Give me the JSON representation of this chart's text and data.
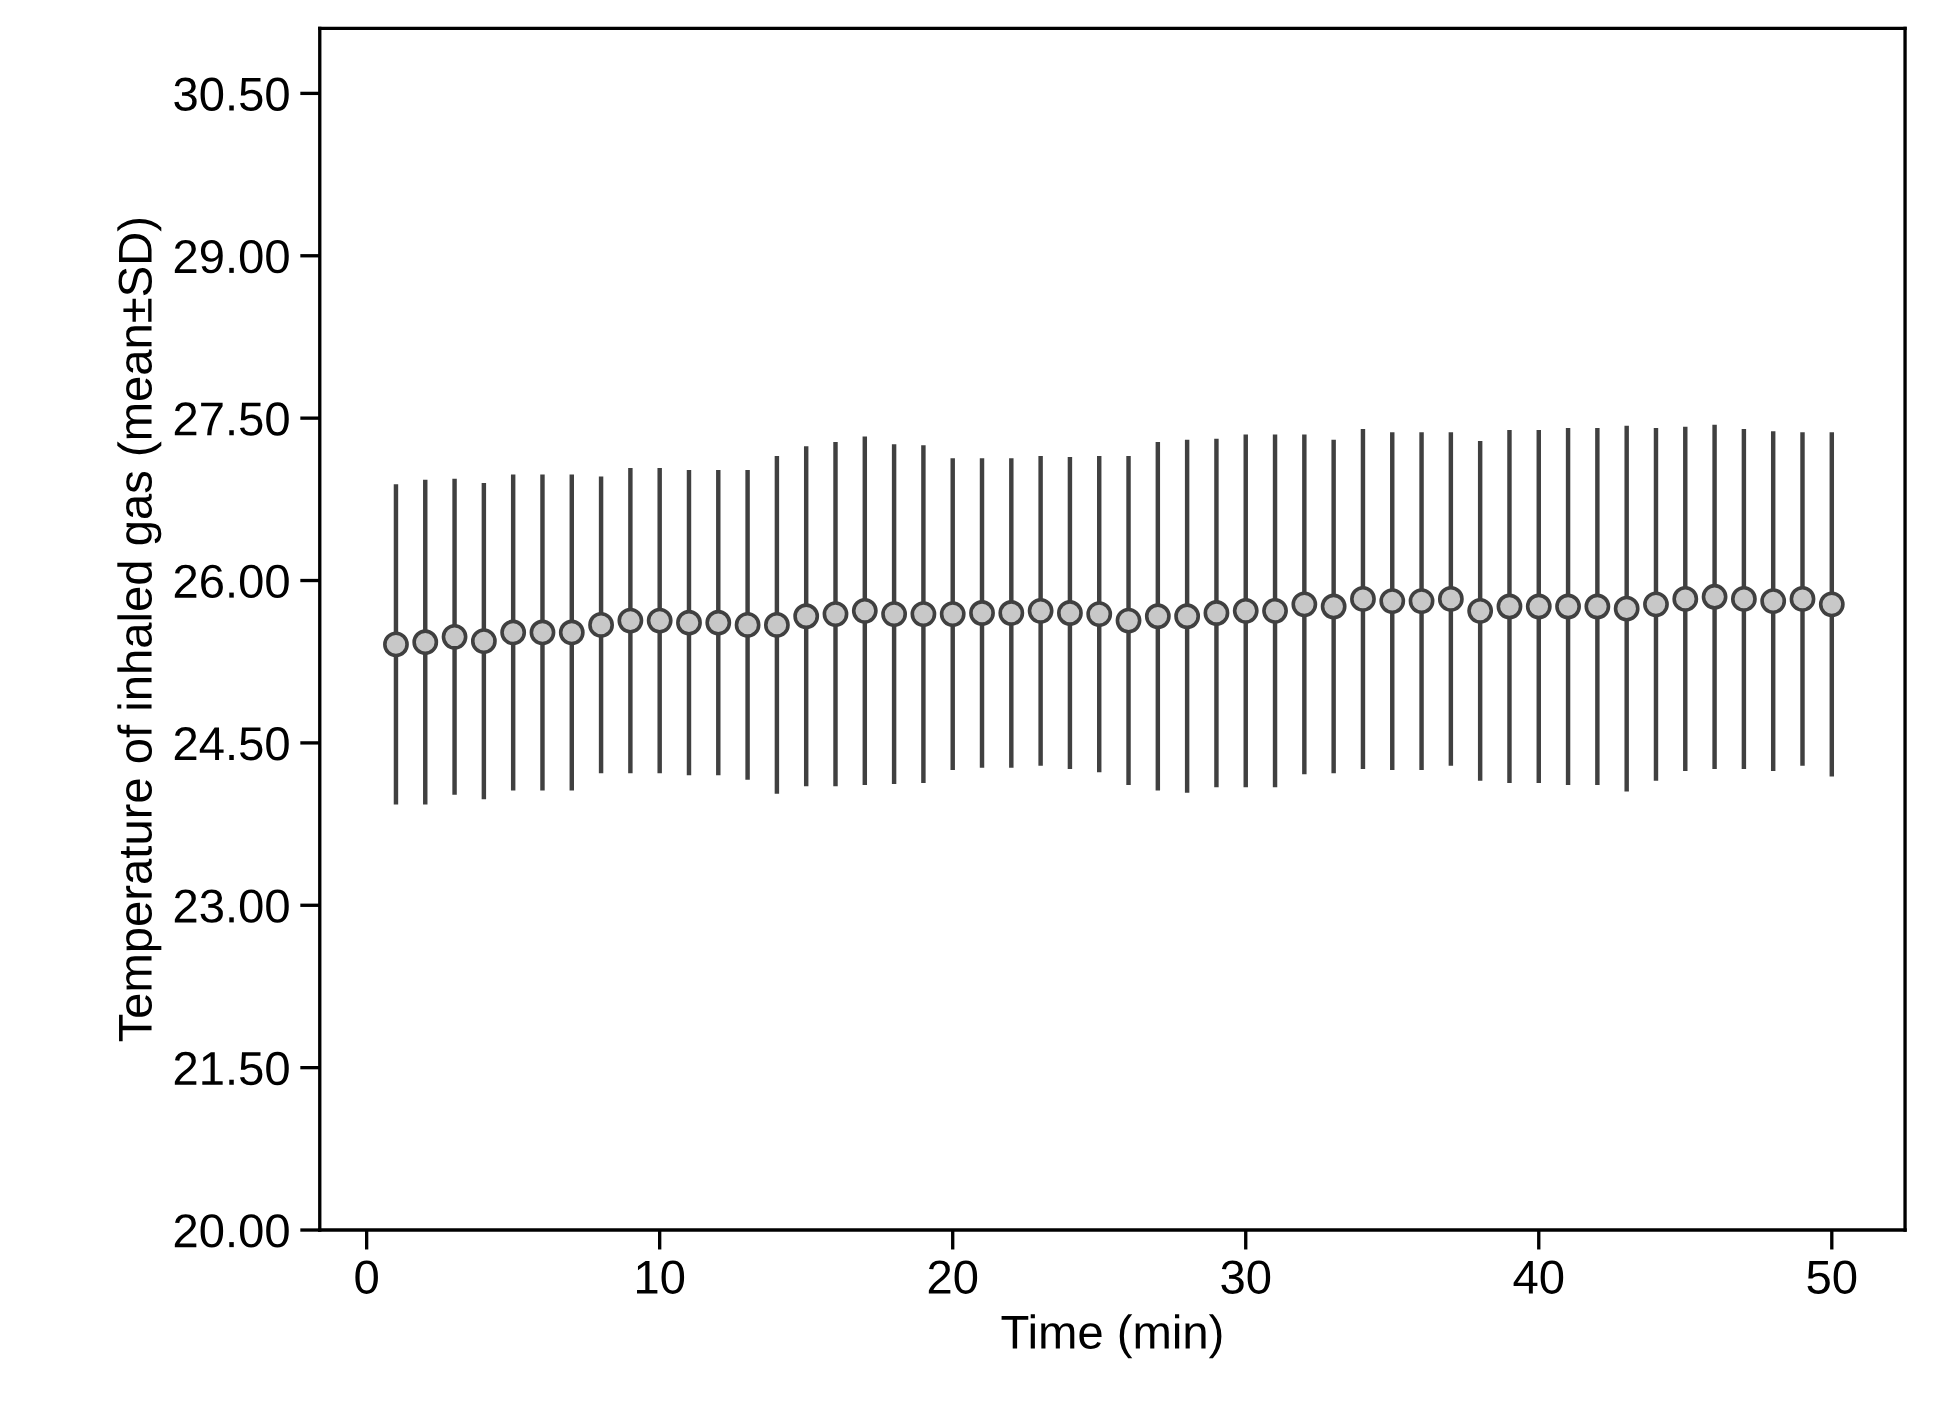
{
  "chart_data": {
    "type": "scatter",
    "xlabel": "Time (min)",
    "ylabel": "Temperature of inhaled gas (mean±SD)",
    "xlim": [
      -1.6,
      52.5
    ],
    "ylim": [
      20.0,
      31.1
    ],
    "xticks": [
      0,
      10,
      20,
      30,
      40,
      50
    ],
    "yticks": [
      {
        "value": 20,
        "label": "20.00"
      },
      {
        "value": 21.5,
        "label": "21.50"
      },
      {
        "value": 23,
        "label": "23.00"
      },
      {
        "value": 24.5,
        "label": "24.50"
      },
      {
        "value": 26,
        "label": "26.00"
      },
      {
        "value": 27.5,
        "label": "27.50"
      },
      {
        "value": 29,
        "label": "29.00"
      },
      {
        "value": 30.5,
        "label": "30.50"
      }
    ],
    "grid": false,
    "marker": "circle",
    "x": [
      1,
      2,
      3,
      4,
      5,
      6,
      7,
      8,
      9,
      10,
      11,
      12,
      13,
      14,
      15,
      16,
      17,
      18,
      19,
      20,
      21,
      22,
      23,
      24,
      25,
      26,
      27,
      28,
      29,
      30,
      31,
      32,
      33,
      34,
      35,
      36,
      37,
      38,
      39,
      40,
      41,
      42,
      43,
      44,
      45,
      46,
      47,
      48,
      49,
      50
    ],
    "series": [
      {
        "color": "#404040",
        "values": [
          25.41,
          25.43,
          25.48,
          25.44,
          25.52,
          25.52,
          25.52,
          25.59,
          25.63,
          25.63,
          25.61,
          25.61,
          25.59,
          25.59,
          25.67,
          25.69,
          25.72,
          25.69,
          25.69,
          25.69,
          25.7,
          25.7,
          25.72,
          25.7,
          25.69,
          25.63,
          25.67,
          25.67,
          25.7,
          25.72,
          25.72,
          25.78,
          25.76,
          25.83,
          25.81,
          25.81,
          25.83,
          25.72,
          25.76,
          25.76,
          25.76,
          25.76,
          25.74,
          25.78,
          25.83,
          25.85,
          25.83,
          25.81,
          25.83,
          25.78
        ],
        "errors": [
          1.48,
          1.5,
          1.46,
          1.46,
          1.46,
          1.46,
          1.46,
          1.37,
          1.41,
          1.41,
          1.41,
          1.41,
          1.43,
          1.56,
          1.57,
          1.59,
          1.61,
          1.57,
          1.56,
          1.44,
          1.43,
          1.43,
          1.43,
          1.44,
          1.46,
          1.52,
          1.61,
          1.63,
          1.61,
          1.63,
          1.63,
          1.57,
          1.54,
          1.57,
          1.56,
          1.56,
          1.54,
          1.57,
          1.63,
          1.63,
          1.65,
          1.65,
          1.69,
          1.63,
          1.59,
          1.59,
          1.57,
          1.57,
          1.54,
          1.59
        ]
      }
    ]
  }
}
